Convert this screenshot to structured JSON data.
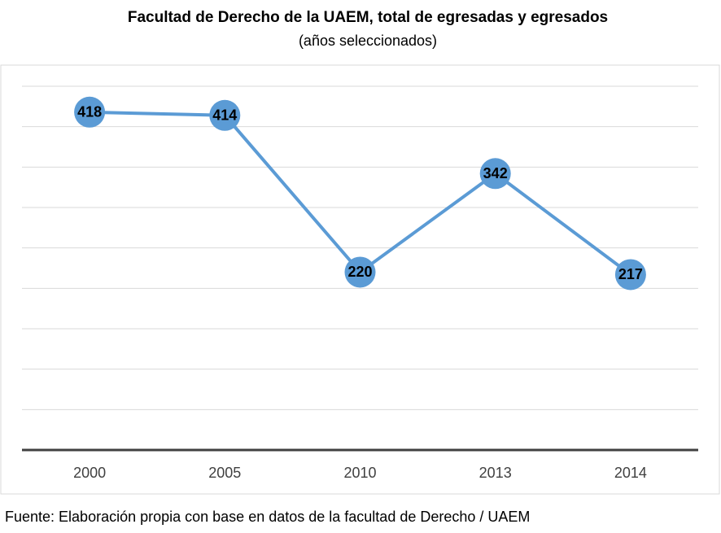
{
  "chart_data": {
    "type": "line",
    "title": "Facultad de Derecho de la UAEM, total de egresadas y egresados",
    "subtitle": "(años seleccionados)",
    "categories": [
      "2000",
      "2005",
      "2010",
      "2013",
      "2014"
    ],
    "series": [
      {
        "name": "Egresadas y egresados",
        "color": "#5b9bd5",
        "values": [
          418,
          414,
          220,
          342,
          217
        ]
      }
    ],
    "ylim": [
      0,
      450
    ],
    "yticks": [
      0,
      50,
      100,
      150,
      200,
      250,
      300,
      350,
      400,
      450
    ],
    "grid": true,
    "source": "Fuente: Elaboración propia con base en datos de la facultad de Derecho / UAEM"
  }
}
